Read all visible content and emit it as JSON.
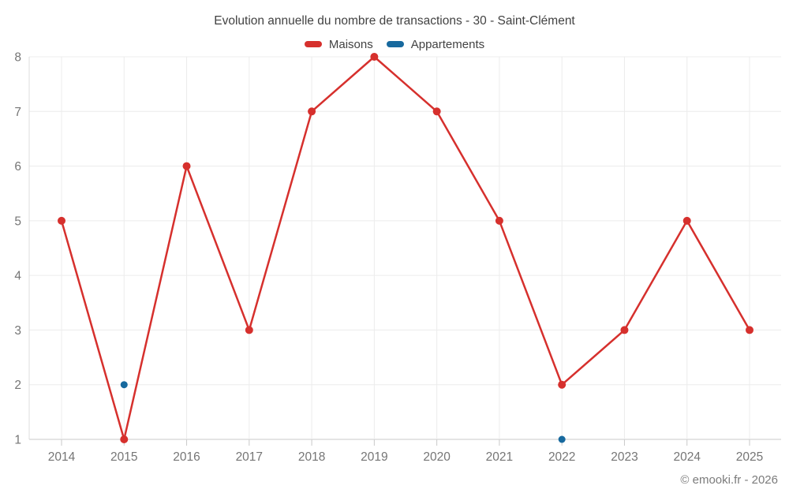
{
  "chart": {
    "title": "Evolution annuelle du nombre de transactions - 30 - Saint-Clément",
    "footer": "© emooki.fr - 2026"
  },
  "chart_data": {
    "type": "line",
    "title": "Evolution annuelle du nombre de transactions - 30 - Saint-Clément",
    "categories": [
      "2014",
      "2015",
      "2016",
      "2017",
      "2018",
      "2019",
      "2020",
      "2021",
      "2022",
      "2023",
      "2024",
      "2025"
    ],
    "series": [
      {
        "name": "Maisons",
        "color": "#d6302d",
        "values": [
          5,
          1,
          6,
          3,
          7,
          8,
          7,
          5,
          2,
          3,
          5,
          3
        ]
      },
      {
        "name": "Appartements",
        "color": "#17699e",
        "values": [
          null,
          2,
          null,
          null,
          null,
          null,
          null,
          null,
          1,
          null,
          null,
          null
        ]
      }
    ],
    "xlabel": "",
    "ylabel": "",
    "ylim": [
      1,
      8
    ],
    "yticks": [
      1,
      2,
      3,
      4,
      5,
      6,
      7,
      8
    ],
    "grid": true,
    "legend_position": "top",
    "colors": {
      "grid": "#ececec",
      "axis": "#c9c9c9",
      "axis_left": "#dedede",
      "tick_label": "#757575",
      "title_text": "#424242",
      "footer_text": "#7b7b7b"
    }
  }
}
